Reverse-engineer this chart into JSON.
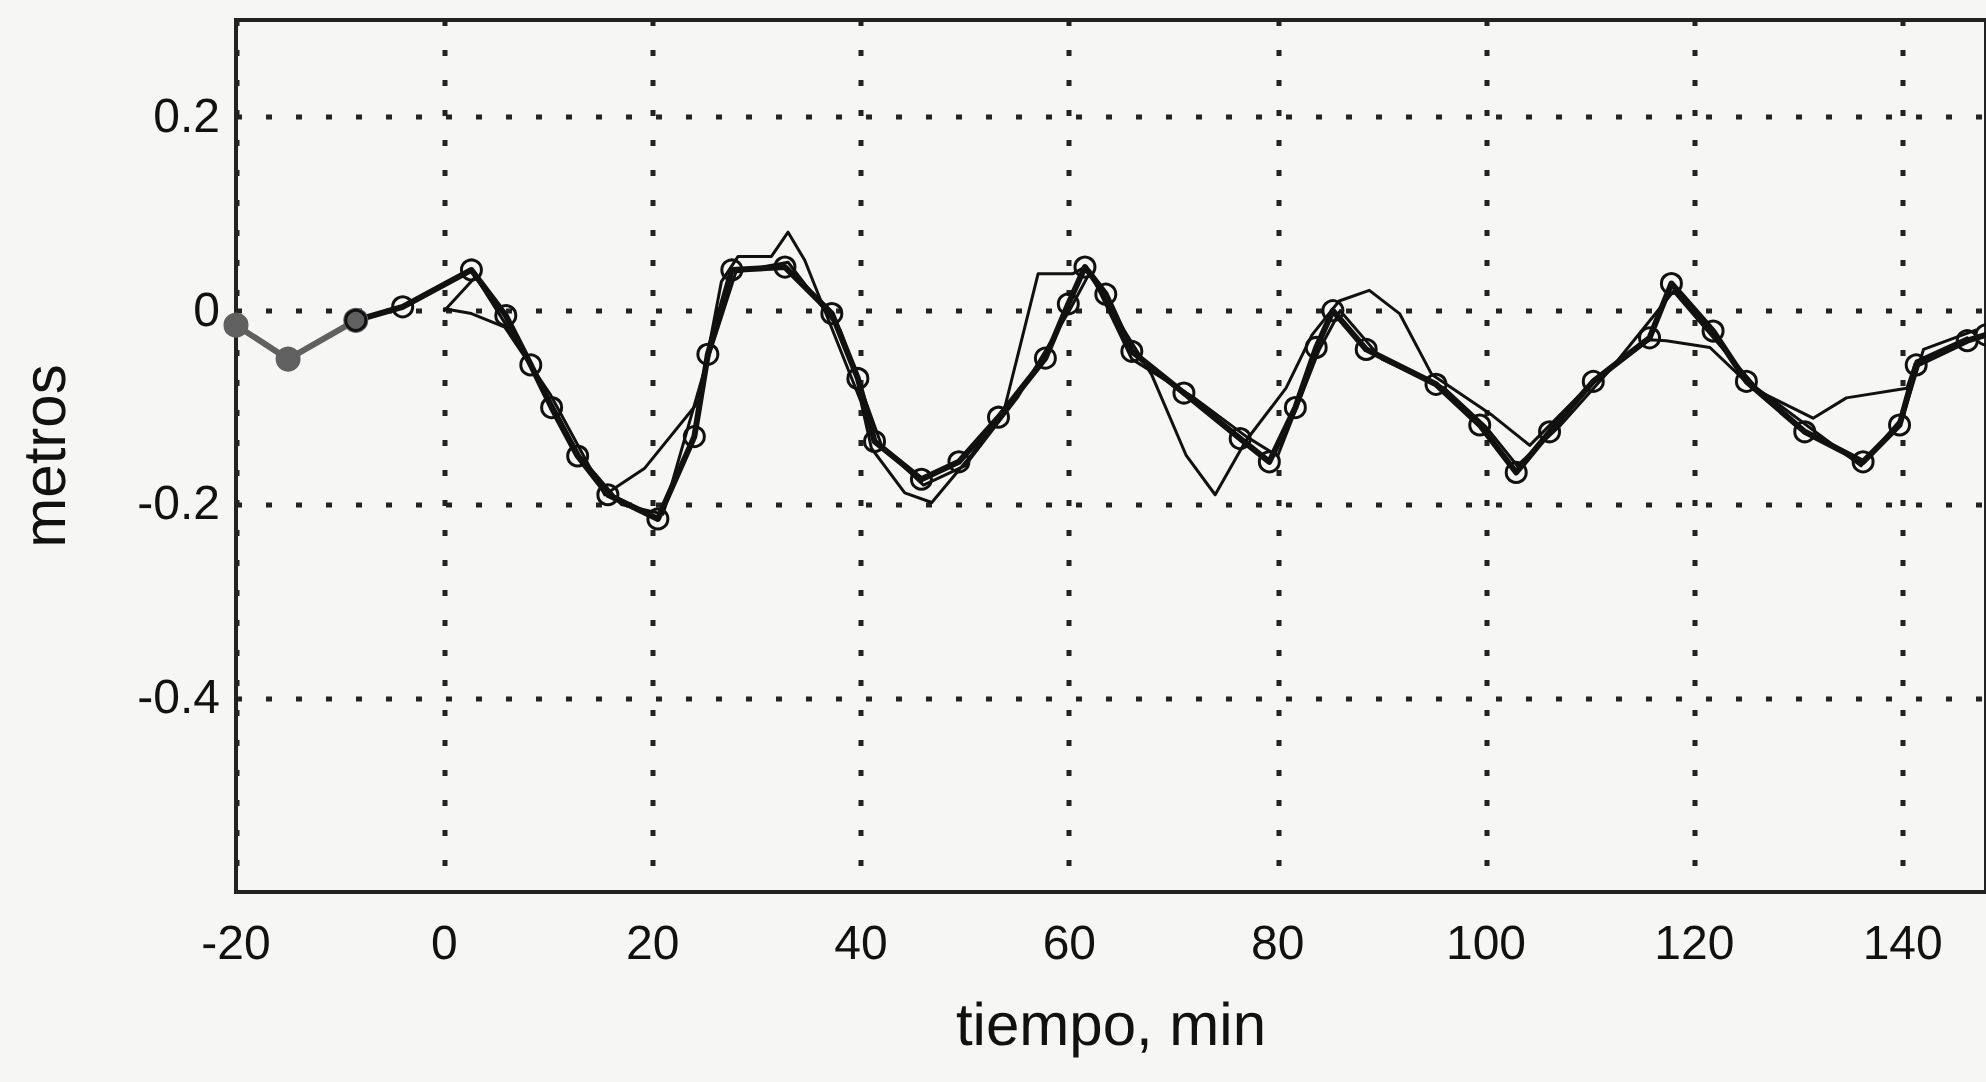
{
  "chart_data": {
    "type": "line",
    "xlabel": "tiempo, min",
    "ylabel": "metros",
    "xlim": [
      -20,
      148
    ],
    "xticks": [
      -20,
      0,
      20,
      40,
      60,
      80,
      100,
      120,
      140
    ],
    "ylim": [
      -0.6,
      0.3
    ],
    "yticks": [
      -0.4,
      -0.2,
      0,
      0.2
    ],
    "grid": true,
    "line_style": "solid",
    "series": [
      {
        "color": "#606060",
        "marker": "circle",
        "x": [
          -20,
          -15,
          -8.5
        ],
        "values": [
          -0.015,
          -0.05,
          -0.01
        ]
      },
      {
        "color": "#111111",
        "x": [
          0,
          2.6,
          5.8,
          10.2,
          15.4,
          19.2,
          24.4,
          26.6,
          28.2,
          31.4,
          33,
          34.6,
          40,
          41,
          44.2,
          46.8,
          50.6,
          53.8,
          57,
          60.3,
          61.5,
          67.9,
          71.2,
          74,
          76.9,
          80.8,
          83.3,
          85.9,
          88.8,
          91.7,
          94.8,
          100.6,
          104.2,
          110.3,
          115.7,
          117.3,
          121.5,
          125.6,
          131.4,
          134.6,
          140.4,
          141.3,
          146.2
        ],
        "values": [
          0.002,
          -0.003,
          -0.017,
          -0.087,
          -0.19,
          -0.163,
          -0.094,
          0.03,
          0.056,
          0.056,
          0.081,
          0.052,
          -0.094,
          -0.142,
          -0.188,
          -0.198,
          -0.149,
          -0.1,
          0.038,
          0.038,
          0.045,
          -0.066,
          -0.149,
          -0.19,
          -0.135,
          -0.08,
          -0.025,
          0.01,
          0.021,
          -0.003,
          -0.066,
          -0.108,
          -0.139,
          -0.073,
          -0.03,
          -0.031,
          -0.038,
          -0.08,
          -0.111,
          -0.09,
          -0.08,
          -0.052,
          -0.028
        ]
      },
      {
        "color": "#111111",
        "x": [
          0,
          3,
          8,
          13,
          17,
          21,
          25,
          28,
          33,
          38,
          42,
          46,
          50,
          55,
          60,
          62,
          66,
          72,
          77,
          80,
          84,
          86,
          90,
          96,
          100,
          103,
          107,
          112,
          118,
          122,
          126,
          131,
          136,
          140,
          142,
          147
        ],
        "values": [
          0.0,
          0.035,
          -0.05,
          -0.15,
          -0.2,
          -0.21,
          -0.06,
          0.04,
          0.05,
          -0.02,
          -0.14,
          -0.18,
          -0.16,
          -0.09,
          0.0,
          0.04,
          -0.05,
          -0.09,
          -0.13,
          -0.15,
          -0.04,
          0.0,
          -0.05,
          -0.08,
          -0.12,
          -0.16,
          -0.12,
          -0.06,
          0.02,
          -0.03,
          -0.08,
          -0.12,
          -0.16,
          -0.11,
          -0.04,
          -0.02
        ]
      },
      {
        "color": "#111111",
        "marker": "circle",
        "x": [
          -8.5,
          -4,
          2.6,
          5.9,
          8.3,
          10.3,
          12.8,
          15.7,
          20.5,
          24,
          25.3,
          27.6,
          32.7,
          37.2,
          39.7,
          41.3,
          45.8,
          49.4,
          53.2,
          57.7,
          59.9,
          61.5,
          63.5,
          66,
          71,
          76.4,
          79.2,
          81.7,
          83.7,
          85.3,
          88.5,
          95.2,
          99.4,
          102.9,
          106.1,
          110.3,
          115.7,
          117.8,
          121.8,
          125,
          130.6,
          136.2,
          139.7,
          141.3,
          146.2,
          148
        ],
        "values": [
          -0.01,
          0.004,
          0.042,
          -0.005,
          -0.056,
          -0.1,
          -0.15,
          -0.19,
          -0.215,
          -0.13,
          -0.045,
          0.042,
          0.045,
          -0.003,
          -0.07,
          -0.135,
          -0.174,
          -0.156,
          -0.11,
          -0.049,
          0.007,
          0.045,
          0.017,
          -0.042,
          -0.085,
          -0.132,
          -0.156,
          -0.1,
          -0.038,
          0,
          -0.04,
          -0.076,
          -0.118,
          -0.167,
          -0.125,
          -0.073,
          -0.028,
          0.028,
          -0.021,
          -0.073,
          -0.125,
          -0.156,
          -0.118,
          -0.056,
          -0.031,
          -0.025
        ]
      }
    ]
  }
}
